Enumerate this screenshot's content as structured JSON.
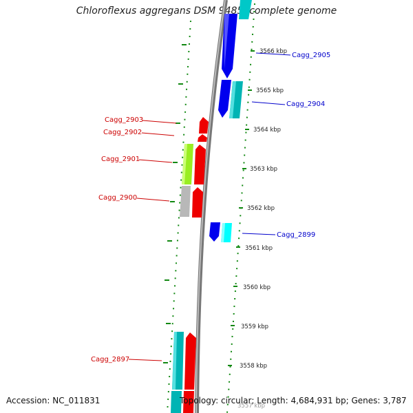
{
  "title": "Chloroflexus aggregans DSM 9485, complete genome",
  "footer": {
    "accession": "Accession: NC_011831",
    "summary": "Topology: circular; Length: 4,684,931 bp; Genes: 3,787"
  },
  "colors": {
    "forward_strand": "#0000ff",
    "forward_strand_alt": "#00c8c8",
    "reverse_strand": "#ff0000",
    "reverse_strand_alt": "#99ee22",
    "neutral": "#b8b8b8",
    "backbone": "#888888",
    "ruler_ticks": "#118811"
  },
  "ruler_labels": [
    "3566 kbp",
    "3565 kbp",
    "3564 kbp",
    "3563 kbp",
    "3562 kbp",
    "3561 kbp",
    "3560 kbp",
    "3559 kbp",
    "3558 kbp",
    "3557 kbp"
  ],
  "genes_forward": [
    {
      "id": "Cagg_2905"
    },
    {
      "id": "Cagg_2904"
    },
    {
      "id": "Cagg_2899"
    }
  ],
  "genes_reverse": [
    {
      "id": "Cagg_2903"
    },
    {
      "id": "Cagg_2902"
    },
    {
      "id": "Cagg_2901"
    },
    {
      "id": "Cagg_2900"
    },
    {
      "id": "Cagg_2897"
    }
  ]
}
